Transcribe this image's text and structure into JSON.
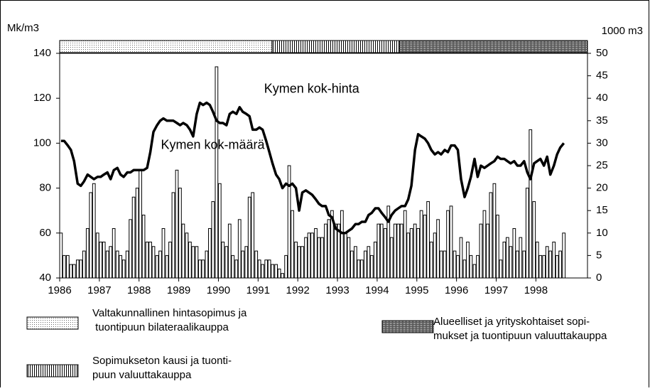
{
  "chart_data": {
    "type": "bar-line",
    "y_label": "Mk/m3",
    "y2_label": "1000 m3",
    "xlim": [
      1986,
      1999.3
    ],
    "xticks": [
      1986,
      1987,
      1988,
      1989,
      1990,
      1991,
      1992,
      1993,
      1994,
      1995,
      1996,
      1997,
      1998
    ],
    "ylim": [
      40,
      140
    ],
    "yticks": [
      40,
      60,
      80,
      100,
      120,
      140
    ],
    "y2lim": [
      0,
      50
    ],
    "y2ticks": [
      0,
      5,
      10,
      15,
      20,
      25,
      30,
      35,
      40,
      45,
      50
    ],
    "legend_position": "bottom",
    "x": [
      1986,
      1986.08,
      1986.17,
      1986.25,
      1986.33,
      1986.42,
      1986.5,
      1986.58,
      1986.67,
      1986.75,
      1986.83,
      1986.92,
      1987,
      1987.08,
      1987.17,
      1987.25,
      1987.33,
      1987.42,
      1987.5,
      1987.58,
      1987.67,
      1987.75,
      1987.83,
      1987.92,
      1988,
      1988.08,
      1988.17,
      1988.25,
      1988.33,
      1988.42,
      1988.5,
      1988.58,
      1988.67,
      1988.75,
      1988.83,
      1988.92,
      1989,
      1989.08,
      1989.17,
      1989.25,
      1989.33,
      1989.42,
      1989.5,
      1989.58,
      1989.67,
      1989.75,
      1989.83,
      1989.92,
      1990,
      1990.08,
      1990.17,
      1990.25,
      1990.33,
      1990.42,
      1990.5,
      1990.58,
      1990.67,
      1990.75,
      1990.83,
      1990.92,
      1991,
      1991.08,
      1991.17,
      1991.25,
      1991.33,
      1991.42,
      1991.5,
      1991.58,
      1991.67,
      1991.75,
      1991.83,
      1991.92,
      1992,
      1992.08,
      1992.17,
      1992.25,
      1992.33,
      1992.42,
      1992.5,
      1992.58,
      1992.67,
      1992.75,
      1992.83,
      1992.92,
      1993,
      1993.08,
      1993.17,
      1993.25,
      1993.33,
      1993.42,
      1993.5,
      1993.58,
      1993.67,
      1993.75,
      1993.83,
      1993.92,
      1994,
      1994.08,
      1994.17,
      1994.25,
      1994.33,
      1994.42,
      1994.5,
      1994.58,
      1994.67,
      1994.75,
      1994.83,
      1994.92,
      1995,
      1995.08,
      1995.17,
      1995.25,
      1995.33,
      1995.42,
      1995.5,
      1995.58,
      1995.67,
      1995.75,
      1995.83,
      1995.92,
      1996,
      1996.08,
      1996.17,
      1996.25,
      1996.33,
      1996.42,
      1996.5,
      1996.58,
      1996.67,
      1996.75,
      1996.83,
      1996.92,
      1997,
      1997.08,
      1997.17,
      1997.25,
      1997.33,
      1997.42,
      1997.5,
      1997.58,
      1997.67,
      1997.75,
      1997.83,
      1997.92,
      1998,
      1998.08,
      1998.17,
      1998.25,
      1998.33,
      1998.42,
      1998.5,
      1998.58,
      1998.67
    ],
    "series": [
      {
        "type": "bar",
        "axis": "y2",
        "color": "#000000",
        "values": [
          10,
          5,
          5,
          3,
          3,
          4,
          4,
          6,
          11,
          19,
          21,
          10,
          8,
          8,
          6,
          7,
          11,
          6,
          5,
          4,
          6,
          13,
          18,
          20,
          24,
          14,
          8,
          8,
          7,
          5,
          6,
          11,
          5,
          8,
          19,
          24,
          20,
          12,
          10,
          8,
          7,
          7,
          4,
          4,
          6,
          11,
          17,
          47,
          21,
          8,
          7,
          12,
          5,
          4,
          13,
          6,
          7,
          18,
          19,
          6,
          4,
          3,
          4,
          4,
          3,
          3,
          2,
          1,
          5,
          25,
          15,
          8,
          7,
          7,
          9,
          10,
          10,
          11,
          9,
          9,
          12,
          13,
          15,
          12,
          12,
          15,
          10,
          9,
          6,
          7,
          4,
          4,
          6,
          7,
          5,
          8,
          12,
          12,
          11,
          16,
          9,
          12,
          12,
          12,
          15,
          10,
          11,
          12,
          11,
          15,
          14,
          17,
          8,
          10,
          13,
          6,
          6,
          15,
          16,
          6,
          5,
          9,
          4,
          8,
          5,
          3,
          5,
          12,
          15,
          12,
          19,
          21,
          14,
          4,
          8,
          9,
          7,
          11,
          6,
          9,
          6,
          20,
          33,
          17,
          8,
          5,
          5,
          7,
          6,
          8,
          5,
          6,
          10
        ]
      },
      {
        "type": "line",
        "axis": "y",
        "color": "#000000",
        "values": [
          101,
          101,
          99,
          97,
          92,
          82,
          81,
          83,
          86,
          85,
          84,
          85,
          85,
          86,
          87,
          84,
          88,
          89,
          86,
          85,
          87,
          87,
          88,
          88,
          88,
          88,
          89,
          96,
          105,
          108,
          110,
          111,
          110,
          110,
          110,
          109,
          108,
          109,
          108,
          106,
          103,
          113,
          118,
          117,
          118,
          117,
          114,
          110,
          109,
          109,
          108,
          113,
          114,
          113,
          116,
          114,
          113,
          112,
          106,
          106,
          107,
          106,
          101,
          96,
          91,
          86,
          84,
          80,
          82,
          81,
          82,
          80,
          70,
          78,
          79,
          78,
          77,
          75,
          73,
          72,
          72,
          68,
          67,
          62,
          61,
          60,
          60,
          61,
          62,
          64,
          64,
          65,
          65,
          68,
          69,
          71,
          71,
          69,
          67,
          65,
          68,
          70,
          71,
          72,
          72,
          75,
          81,
          97,
          104,
          103,
          102,
          100,
          97,
          95,
          96,
          95,
          97,
          96,
          99,
          99,
          97,
          84,
          76,
          80,
          85,
          93,
          85,
          90,
          89,
          90,
          91,
          92,
          94,
          93,
          93,
          92,
          91,
          92,
          90,
          90,
          92,
          87,
          84,
          91,
          92,
          93,
          90,
          94,
          86,
          90,
          95,
          98,
          100
        ]
      }
    ],
    "annotations": [
      {
        "text": "Kymen kok-hinta",
        "x": 1991.15,
        "y": 124
      },
      {
        "text": "Kymen kok-määrä",
        "x": 1988.55,
        "y": 99
      }
    ],
    "periods": [
      {
        "start": 1986,
        "end": 1991.35,
        "pattern": "dots",
        "label": [
          "Valtakunnallinen hintasopimus ja",
          " tuontipuun bilateraalikauppa"
        ]
      },
      {
        "start": 1991.35,
        "end": 1994.55,
        "pattern": "vertical",
        "label": [
          "Sopimukseton kausi ja tuonti-",
          "puun valuuttakauppa"
        ]
      },
      {
        "start": 1994.55,
        "end": 1999.3,
        "pattern": "grid",
        "label": [
          "Alueelliset ja yrityskohtaiset sopi-",
          "mukset ja tuontipuun valuuttakauppa"
        ]
      }
    ]
  }
}
